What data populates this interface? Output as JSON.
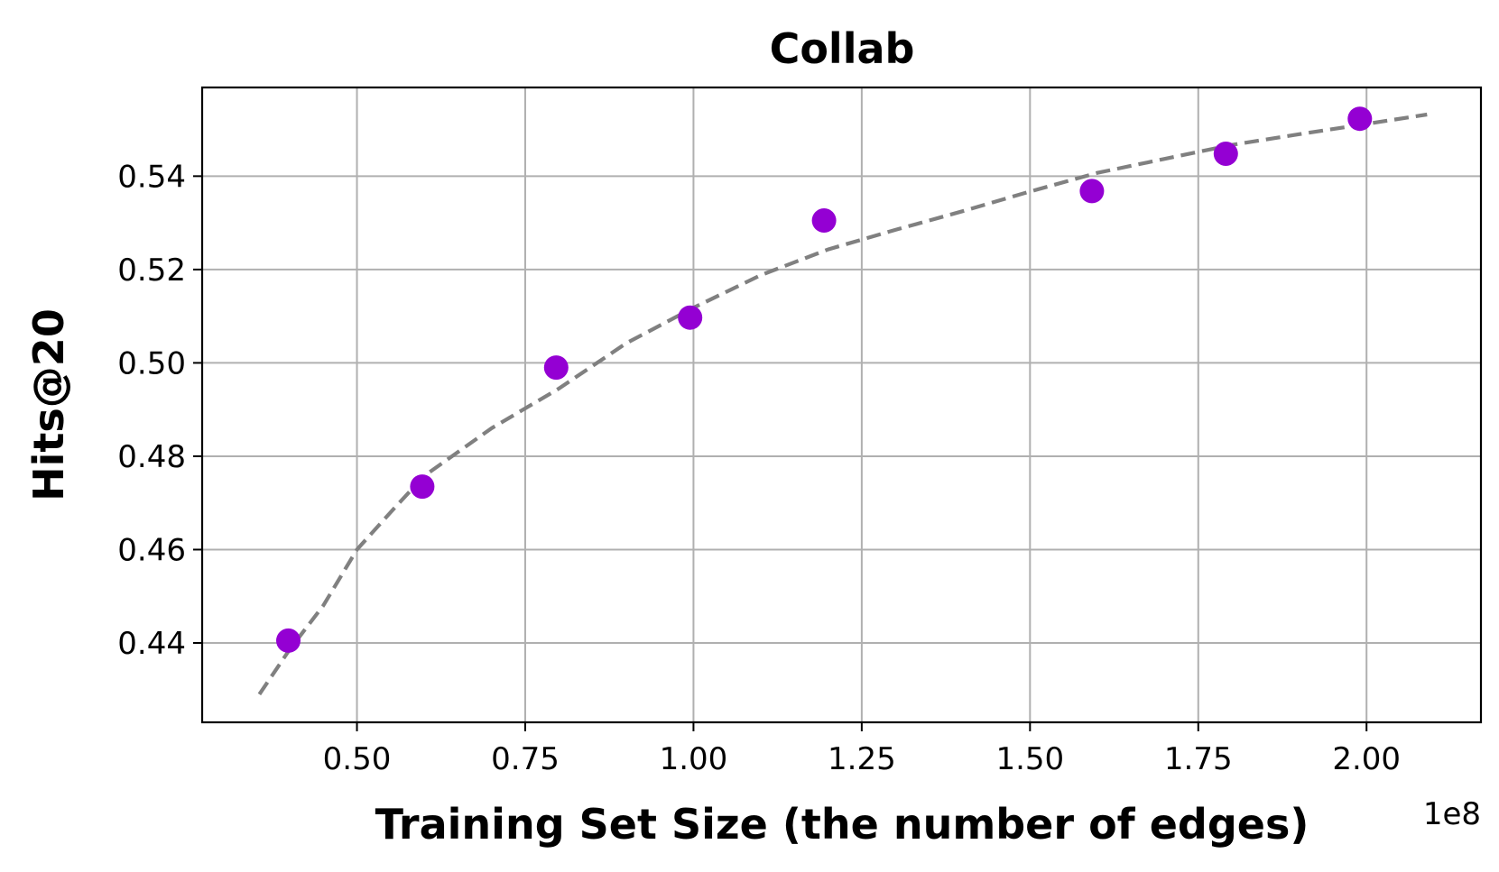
{
  "chart_data": {
    "type": "scatter",
    "title": "Collab",
    "xlabel": "Training Set Size (the number of edges)",
    "ylabel": "Hits@20",
    "x_offset_label": "1e8",
    "xlim": [
      0.27,
      2.17
    ],
    "ylim": [
      0.423,
      0.559
    ],
    "xticks": [
      0.5,
      0.75,
      1.0,
      1.25,
      1.5,
      1.75,
      2.0
    ],
    "xtick_labels": [
      "0.50",
      "0.75",
      "1.00",
      "1.25",
      "1.50",
      "1.75",
      "2.00"
    ],
    "yticks": [
      0.44,
      0.46,
      0.48,
      0.5,
      0.52,
      0.54
    ],
    "ytick_labels": [
      "0.44",
      "0.46",
      "0.48",
      "0.50",
      "0.52",
      "0.54"
    ],
    "grid": true,
    "series": [
      {
        "kind": "scatter",
        "color": "#9400d3",
        "x": [
          0.398,
          0.597,
          0.796,
          0.995,
          1.194,
          1.592,
          1.791,
          1.99
        ],
        "y": [
          0.4405,
          0.4735,
          0.499,
          0.5097,
          0.5305,
          0.5368,
          0.5448,
          0.5523
        ]
      },
      {
        "kind": "fit-line",
        "color": "#808080",
        "style": "dashed",
        "x": [
          0.355,
          0.4,
          0.45,
          0.5,
          0.55,
          0.6,
          0.7,
          0.8,
          0.9,
          1.0,
          1.1,
          1.2,
          1.3,
          1.4,
          1.5,
          1.6,
          1.7,
          1.8,
          1.9,
          2.0,
          2.09
        ],
        "y": [
          0.429,
          0.4386,
          0.448,
          0.46,
          0.468,
          0.4758,
          0.486,
          0.4945,
          0.5042,
          0.5118,
          0.5188,
          0.5243,
          0.5285,
          0.5325,
          0.5367,
          0.5407,
          0.5437,
          0.5467,
          0.549,
          0.5512,
          0.5532
        ]
      }
    ]
  }
}
